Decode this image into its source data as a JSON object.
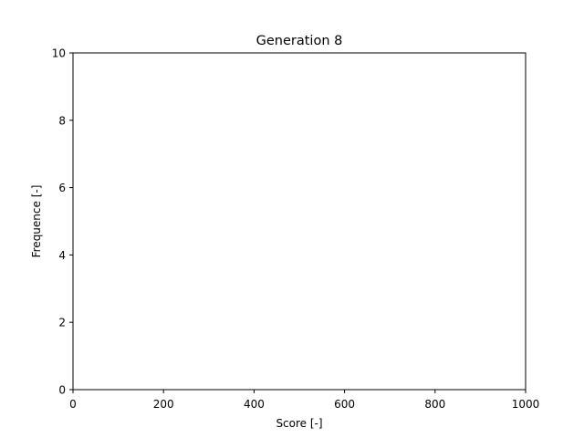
{
  "chart_data": {
    "type": "bar",
    "title": "Generation 8",
    "xlabel": "Score [-]",
    "ylabel": "Frequence [-]",
    "xlim": [
      0,
      1000
    ],
    "ylim": [
      0,
      10
    ],
    "xticks": [
      0,
      200,
      400,
      600,
      800,
      1000
    ],
    "yticks": [
      0,
      2,
      4,
      6,
      8,
      10
    ],
    "xtick_labels": [
      "0",
      "200",
      "400",
      "600",
      "800",
      "1000"
    ],
    "ytick_labels": [
      "0",
      "2",
      "4",
      "6",
      "8",
      "10"
    ],
    "grid": false,
    "series": [],
    "colors": {
      "axes": "#000000",
      "background": "#ffffff"
    }
  }
}
